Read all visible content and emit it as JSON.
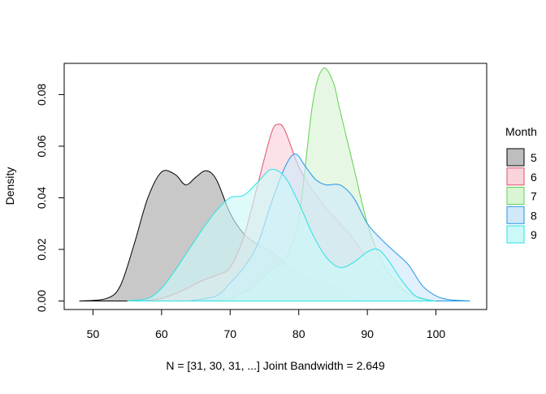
{
  "chart_data": {
    "type": "area",
    "title": "",
    "xlabel": "N = [31, 30, 31, ...]   Joint Bandwidth = 2.649",
    "ylabel": "Density",
    "xlim": [
      45.8,
      107.4
    ],
    "ylim": [
      -0.0033,
      0.0921
    ],
    "x_ticks": [
      "50",
      "60",
      "70",
      "80",
      "90",
      "100"
    ],
    "y_ticks": [
      "0.00",
      "0.02",
      "0.04",
      "0.06",
      "0.08"
    ],
    "grid": false,
    "legend": {
      "title": "Month",
      "placement": "right"
    },
    "series": [
      {
        "name": "5",
        "stroke": "#000000",
        "fill": "#bebebe",
        "points": [
          [
            48,
            0
          ],
          [
            52,
            0.001
          ],
          [
            54,
            0.006
          ],
          [
            56,
            0.022
          ],
          [
            58,
            0.04
          ],
          [
            60,
            0.05
          ],
          [
            62,
            0.049
          ],
          [
            63.5,
            0.045
          ],
          [
            65,
            0.048
          ],
          [
            66.5,
            0.0505
          ],
          [
            68,
            0.047
          ],
          [
            70,
            0.034
          ],
          [
            72,
            0.026
          ],
          [
            74,
            0.022
          ],
          [
            76,
            0.019
          ],
          [
            78,
            0.0145
          ],
          [
            80,
            0.0105
          ],
          [
            82,
            0.0085
          ],
          [
            84,
            0.0065
          ],
          [
            86,
            0.0035
          ],
          [
            88,
            0.0008
          ],
          [
            89,
            0
          ]
        ]
      },
      {
        "name": "6",
        "stroke": "#DF536B",
        "fill": "#fad3dc",
        "points": [
          [
            57,
            0
          ],
          [
            60,
            0.001
          ],
          [
            63,
            0.004
          ],
          [
            66,
            0.008
          ],
          [
            68,
            0.01
          ],
          [
            70,
            0.013
          ],
          [
            72,
            0.025
          ],
          [
            74,
            0.045
          ],
          [
            76,
            0.065
          ],
          [
            77,
            0.0685
          ],
          [
            78,
            0.066
          ],
          [
            80,
            0.052
          ],
          [
            82,
            0.043
          ],
          [
            84,
            0.036
          ],
          [
            86,
            0.03
          ],
          [
            88,
            0.024
          ],
          [
            90,
            0.016
          ],
          [
            92,
            0.01
          ],
          [
            94,
            0.006
          ],
          [
            96,
            0.003
          ],
          [
            98,
            0.001
          ],
          [
            100,
            0
          ]
        ]
      },
      {
        "name": "7",
        "stroke": "#61D04F",
        "fill": "#d9f5d4",
        "points": [
          [
            66,
            0
          ],
          [
            70,
            0.001
          ],
          [
            73,
            0.005
          ],
          [
            76,
            0.012
          ],
          [
            78,
            0.016
          ],
          [
            80,
            0.032
          ],
          [
            82,
            0.076
          ],
          [
            83.5,
            0.09
          ],
          [
            85,
            0.085
          ],
          [
            86,
            0.074
          ],
          [
            88,
            0.052
          ],
          [
            90,
            0.03
          ],
          [
            92,
            0.016
          ],
          [
            94,
            0.008
          ],
          [
            96,
            0.003
          ],
          [
            98,
            0.001
          ],
          [
            100,
            0
          ]
        ]
      },
      {
        "name": "8",
        "stroke": "#2297E6",
        "fill": "#d0e8fa",
        "points": [
          [
            64,
            0
          ],
          [
            68,
            0.002
          ],
          [
            70,
            0.007
          ],
          [
            72,
            0.013
          ],
          [
            74,
            0.022
          ],
          [
            76,
            0.038
          ],
          [
            78,
            0.052
          ],
          [
            79.5,
            0.057
          ],
          [
            81,
            0.052
          ],
          [
            82.5,
            0.047
          ],
          [
            84,
            0.045
          ],
          [
            86,
            0.045
          ],
          [
            88,
            0.04
          ],
          [
            90,
            0.03
          ],
          [
            92,
            0.024
          ],
          [
            94,
            0.019
          ],
          [
            96,
            0.014
          ],
          [
            98,
            0.006
          ],
          [
            100,
            0.002
          ],
          [
            102,
            0.0005
          ],
          [
            105,
            0
          ]
        ]
      },
      {
        "name": "9",
        "stroke": "#28E2E5",
        "fill": "#ccf8f8",
        "points": [
          [
            55,
            0
          ],
          [
            58,
            0.001
          ],
          [
            60,
            0.005
          ],
          [
            62,
            0.012
          ],
          [
            64,
            0.02
          ],
          [
            66,
            0.028
          ],
          [
            68,
            0.035
          ],
          [
            70,
            0.04
          ],
          [
            72,
            0.041
          ],
          [
            74,
            0.046
          ],
          [
            76,
            0.051
          ],
          [
            78,
            0.048
          ],
          [
            80,
            0.038
          ],
          [
            82,
            0.026
          ],
          [
            84,
            0.017
          ],
          [
            86,
            0.013
          ],
          [
            88,
            0.015
          ],
          [
            90,
            0.019
          ],
          [
            91.5,
            0.02
          ],
          [
            93,
            0.016
          ],
          [
            95,
            0.008
          ],
          [
            97,
            0.002
          ],
          [
            99,
            0.0003
          ],
          [
            100,
            0
          ]
        ]
      }
    ]
  }
}
